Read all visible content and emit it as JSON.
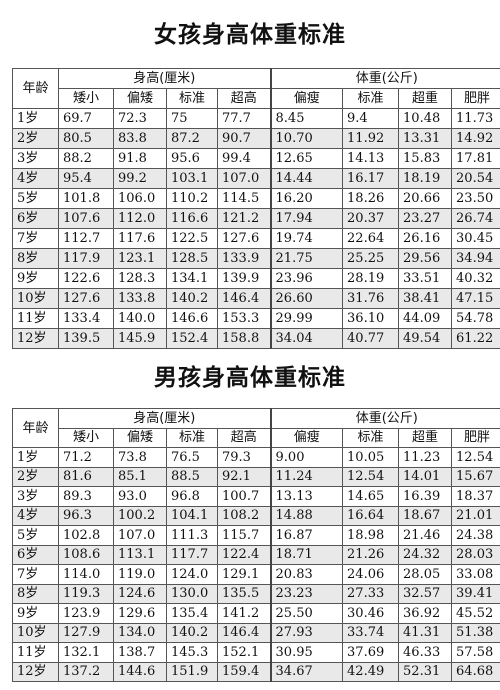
{
  "girls": {
    "title": "女孩身高体重标准",
    "age_header": "年龄",
    "height_header": "身高(厘米)",
    "weight_header": "体重(公斤)",
    "height_cols": [
      "矮小",
      "偏矮",
      "标准",
      "超高"
    ],
    "weight_cols": [
      "偏瘦",
      "标准",
      "超重",
      "肥胖"
    ],
    "rows": [
      {
        "age": "1岁",
        "h": [
          "69.7",
          "72.3",
          "75",
          "77.7"
        ],
        "w": [
          "8.45",
          "9.4",
          "10.48",
          "11.73"
        ]
      },
      {
        "age": "2岁",
        "h": [
          "80.5",
          "83.8",
          "87.2",
          "90.7"
        ],
        "w": [
          "10.70",
          "11.92",
          "13.31",
          "14.92"
        ]
      },
      {
        "age": "3岁",
        "h": [
          "88.2",
          "91.8",
          "95.6",
          "99.4"
        ],
        "w": [
          "12.65",
          "14.13",
          "15.83",
          "17.81"
        ]
      },
      {
        "age": "4岁",
        "h": [
          "95.4",
          "99.2",
          "103.1",
          "107.0"
        ],
        "w": [
          "14.44",
          "16.17",
          "18.19",
          "20.54"
        ]
      },
      {
        "age": "5岁",
        "h": [
          "101.8",
          "106.0",
          "110.2",
          "114.5"
        ],
        "w": [
          "16.20",
          "18.26",
          "20.66",
          "23.50"
        ]
      },
      {
        "age": "6岁",
        "h": [
          "107.6",
          "112.0",
          "116.6",
          "121.2"
        ],
        "w": [
          "17.94",
          "20.37",
          "23.27",
          "26.74"
        ]
      },
      {
        "age": "7岁",
        "h": [
          "112.7",
          "117.6",
          "122.5",
          "127.6"
        ],
        "w": [
          "19.74",
          "22.64",
          "26.16",
          "30.45"
        ]
      },
      {
        "age": "8岁",
        "h": [
          "117.9",
          "123.1",
          "128.5",
          "133.9"
        ],
        "w": [
          "21.75",
          "25.25",
          "29.56",
          "34.94"
        ]
      },
      {
        "age": "9岁",
        "h": [
          "122.6",
          "128.3",
          "134.1",
          "139.9"
        ],
        "w": [
          "23.96",
          "28.19",
          "33.51",
          "40.32"
        ]
      },
      {
        "age": "10岁",
        "h": [
          "127.6",
          "133.8",
          "140.2",
          "146.4"
        ],
        "w": [
          "26.60",
          "31.76",
          "38.41",
          "47.15"
        ]
      },
      {
        "age": "11岁",
        "h": [
          "133.4",
          "140.0",
          "146.6",
          "153.3"
        ],
        "w": [
          "29.99",
          "36.10",
          "44.09",
          "54.78"
        ]
      },
      {
        "age": "12岁",
        "h": [
          "139.5",
          "145.9",
          "152.4",
          "158.8"
        ],
        "w": [
          "34.04",
          "40.77",
          "49.54",
          "61.22"
        ]
      }
    ]
  },
  "boys": {
    "title": "男孩身高体重标准",
    "age_header": "年龄",
    "height_header": "身高(厘米)",
    "weight_header": "体重(公斤)",
    "height_cols": [
      "矮小",
      "偏矮",
      "标准",
      "超高"
    ],
    "weight_cols": [
      "偏瘦",
      "标准",
      "超重",
      "肥胖"
    ],
    "rows": [
      {
        "age": "1岁",
        "h": [
          "71.2",
          "73.8",
          "76.5",
          "79.3"
        ],
        "w": [
          "9.00",
          "10.05",
          "11.23",
          "12.54"
        ]
      },
      {
        "age": "2岁",
        "h": [
          "81.6",
          "85.1",
          "88.5",
          "92.1"
        ],
        "w": [
          "11.24",
          "12.54",
          "14.01",
          "15.67"
        ]
      },
      {
        "age": "3岁",
        "h": [
          "89.3",
          "93.0",
          "96.8",
          "100.7"
        ],
        "w": [
          "13.13",
          "14.65",
          "16.39",
          "18.37"
        ]
      },
      {
        "age": "4岁",
        "h": [
          "96.3",
          "100.2",
          "104.1",
          "108.2"
        ],
        "w": [
          "14.88",
          "16.64",
          "18.67",
          "21.01"
        ]
      },
      {
        "age": "5岁",
        "h": [
          "102.8",
          "107.0",
          "111.3",
          "115.7"
        ],
        "w": [
          "16.87",
          "18.98",
          "21.46",
          "24.38"
        ]
      },
      {
        "age": "6岁",
        "h": [
          "108.6",
          "113.1",
          "117.7",
          "122.4"
        ],
        "w": [
          "18.71",
          "21.26",
          "24.32",
          "28.03"
        ]
      },
      {
        "age": "7岁",
        "h": [
          "114.0",
          "119.0",
          "124.0",
          "129.1"
        ],
        "w": [
          "20.83",
          "24.06",
          "28.05",
          "33.08"
        ]
      },
      {
        "age": "8岁",
        "h": [
          "119.3",
          "124.6",
          "130.0",
          "135.5"
        ],
        "w": [
          "23.23",
          "27.33",
          "32.57",
          "39.41"
        ]
      },
      {
        "age": "9岁",
        "h": [
          "123.9",
          "129.6",
          "135.4",
          "141.2"
        ],
        "w": [
          "25.50",
          "30.46",
          "36.92",
          "45.52"
        ]
      },
      {
        "age": "10岁",
        "h": [
          "127.9",
          "134.0",
          "140.2",
          "146.4"
        ],
        "w": [
          "27.93",
          "33.74",
          "41.31",
          "51.38"
        ]
      },
      {
        "age": "11岁",
        "h": [
          "132.1",
          "138.7",
          "145.3",
          "152.1"
        ],
        "w": [
          "30.95",
          "37.69",
          "46.33",
          "57.58"
        ]
      },
      {
        "age": "12岁",
        "h": [
          "137.2",
          "144.6",
          "151.9",
          "159.4"
        ],
        "w": [
          "34.67",
          "42.49",
          "52.31",
          "64.68"
        ]
      }
    ]
  }
}
